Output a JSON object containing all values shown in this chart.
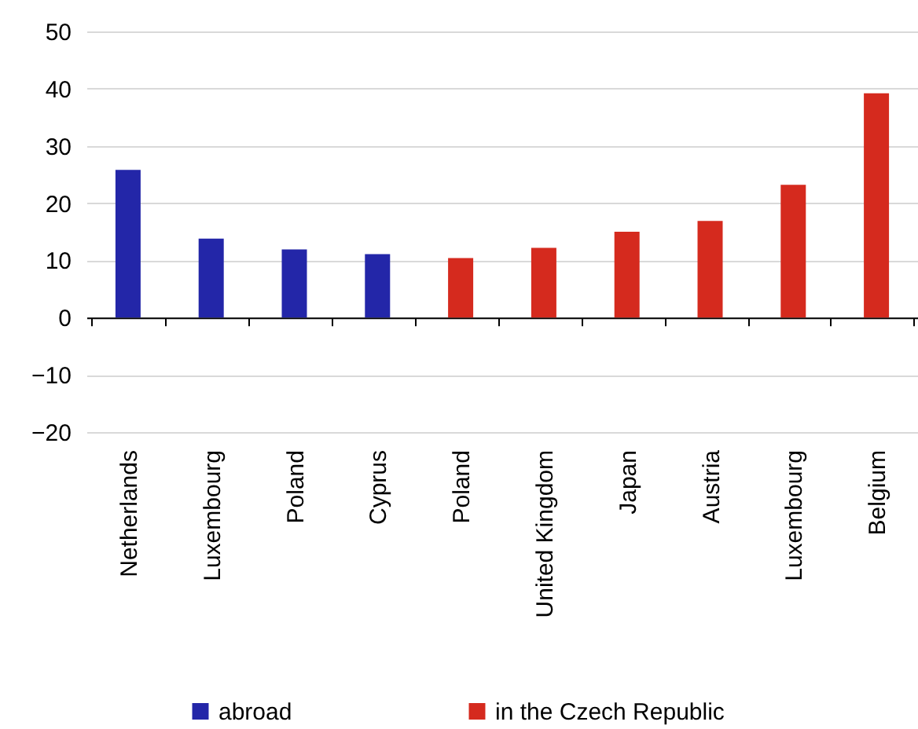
{
  "chart_data": {
    "type": "bar",
    "categories": [
      "Netherlands",
      "Luxembourg",
      "Poland",
      "Cyprus",
      "Poland",
      "United Kingdom",
      "Japan",
      "Austria",
      "Luxembourg",
      "Belgium"
    ],
    "series": [
      {
        "name": "abroad",
        "color": "#2326a8",
        "values": [
          25.8,
          13.8,
          11.9,
          11.1,
          null,
          null,
          null,
          null,
          null,
          null
        ]
      },
      {
        "name": "in the Czech Republic",
        "color": "#d52a1e",
        "values": [
          null,
          null,
          null,
          null,
          10.4,
          12.2,
          15.0,
          16.9,
          23.2,
          39.2
        ]
      }
    ],
    "ylim": [
      -20,
      50
    ],
    "yticks": [
      -20,
      -10,
      0,
      10,
      20,
      30,
      40,
      50
    ],
    "grid": "y",
    "legend": "bottom"
  }
}
